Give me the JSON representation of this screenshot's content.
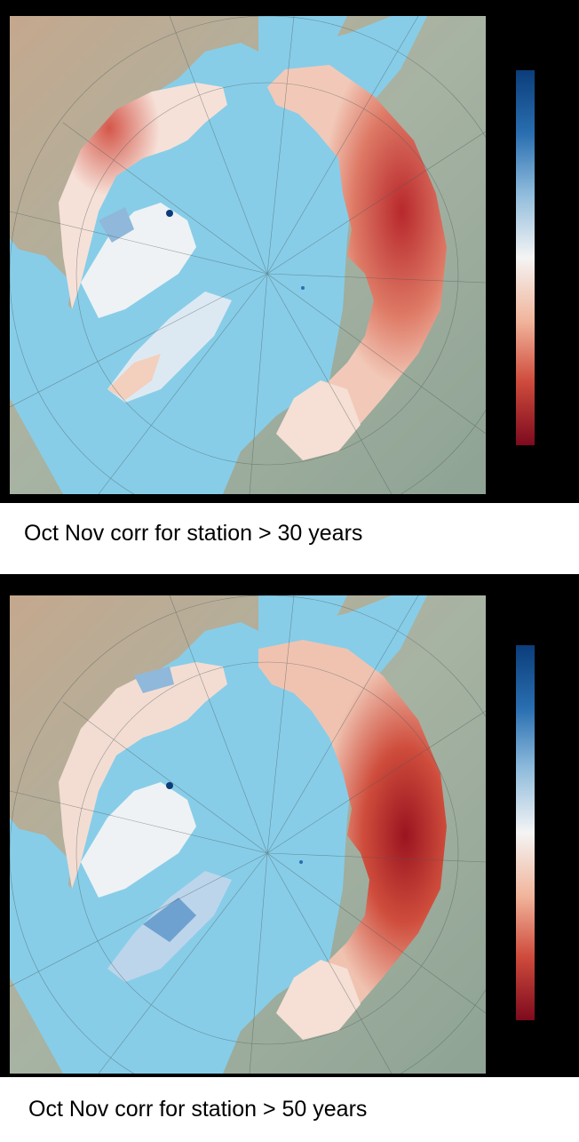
{
  "panels": [
    {
      "id": "panel-30",
      "caption": "Oct Nov corr for station > 30 years",
      "colorbar_colors": [
        "#0b3d7a",
        "#2a6fb1",
        "#8fbcdc",
        "#f4f4f4",
        "#f1b49b",
        "#cf4b3c",
        "#7d0a1e"
      ]
    },
    {
      "id": "panel-50",
      "caption": "Oct Nov corr for station > 50 years",
      "colorbar_colors": [
        "#0b3d7a",
        "#2a6fb1",
        "#8fbcdc",
        "#f4f4f4",
        "#f1b49b",
        "#cf4b3c",
        "#7d0a1e"
      ]
    }
  ],
  "colors": {
    "ocean": "#87cde8",
    "land": "#9aad9f",
    "land_dark": "#7e9588",
    "relief": "#c9a98b",
    "frame": "#000000"
  }
}
